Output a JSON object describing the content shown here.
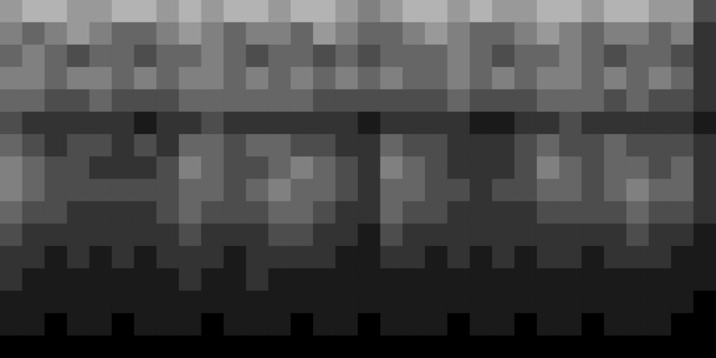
{
  "chart_data": {
    "type": "heatmap",
    "tick_labels": false,
    "grid": false,
    "color_range": [
      0,
      10
    ],
    "cells": [
      [
        6,
        7,
        7,
        6,
        6,
        7,
        7,
        6,
        7,
        6,
        7,
        7,
        6,
        7,
        7,
        6,
        5,
        6,
        7,
        7,
        6,
        7,
        6,
        6,
        7,
        7,
        6,
        7,
        7,
        6,
        6,
        3
      ],
      [
        5,
        4,
        5,
        6,
        5,
        4,
        4,
        5,
        6,
        5,
        4,
        5,
        5,
        4,
        6,
        5,
        4,
        4,
        5,
        6,
        5,
        4,
        4,
        5,
        6,
        5,
        4,
        5,
        5,
        4,
        5,
        2
      ],
      [
        4,
        5,
        4,
        3,
        4,
        4,
        3,
        4,
        4,
        5,
        4,
        3,
        4,
        4,
        3,
        4,
        3,
        4,
        4,
        4,
        5,
        4,
        3,
        4,
        4,
        5,
        4,
        3,
        4,
        4,
        3,
        2
      ],
      [
        5,
        5,
        4,
        5,
        5,
        4,
        5,
        4,
        5,
        5,
        4,
        5,
        4,
        5,
        4,
        5,
        4,
        5,
        4,
        4,
        5,
        4,
        5,
        4,
        5,
        5,
        4,
        5,
        4,
        5,
        4,
        2
      ],
      [
        4,
        4,
        3,
        3,
        4,
        3,
        3,
        3,
        4,
        4,
        4,
        4,
        4,
        4,
        3,
        3,
        3,
        3,
        3,
        3,
        4,
        3,
        3,
        3,
        4,
        4,
        4,
        3,
        4,
        3,
        3,
        2
      ],
      [
        3,
        2,
        2,
        2,
        2,
        2,
        1,
        2,
        2,
        3,
        2,
        2,
        2,
        2,
        2,
        2,
        1,
        2,
        2,
        2,
        2,
        1,
        1,
        2,
        2,
        3,
        2,
        2,
        2,
        2,
        2,
        1
      ],
      [
        4,
        3,
        2,
        3,
        3,
        2,
        3,
        2,
        4,
        4,
        3,
        4,
        4,
        3,
        3,
        2,
        2,
        4,
        3,
        3,
        2,
        2,
        2,
        3,
        4,
        3,
        3,
        4,
        3,
        3,
        3,
        2
      ],
      [
        5,
        4,
        3,
        3,
        2,
        2,
        2,
        3,
        5,
        4,
        3,
        3,
        4,
        5,
        4,
        3,
        2,
        5,
        4,
        3,
        2,
        2,
        2,
        3,
        5,
        4,
        3,
        4,
        4,
        3,
        4,
        2
      ],
      [
        5,
        4,
        3,
        3,
        3,
        3,
        3,
        3,
        4,
        4,
        3,
        4,
        5,
        4,
        4,
        3,
        2,
        4,
        4,
        3,
        3,
        2,
        3,
        3,
        4,
        4,
        3,
        4,
        5,
        4,
        4,
        2
      ],
      [
        4,
        3,
        3,
        2,
        2,
        2,
        2,
        3,
        4,
        3,
        3,
        3,
        4,
        4,
        3,
        2,
        2,
        4,
        3,
        3,
        2,
        2,
        2,
        2,
        3,
        3,
        3,
        3,
        4,
        3,
        3,
        2
      ],
      [
        3,
        2,
        2,
        2,
        2,
        2,
        2,
        2,
        3,
        2,
        2,
        2,
        3,
        3,
        2,
        2,
        1,
        3,
        2,
        2,
        2,
        2,
        2,
        2,
        2,
        2,
        2,
        2,
        3,
        2,
        2,
        1
      ],
      [
        2,
        2,
        1,
        2,
        1,
        2,
        1,
        2,
        2,
        2,
        1,
        2,
        2,
        2,
        2,
        1,
        1,
        2,
        2,
        1,
        2,
        1,
        2,
        1,
        2,
        2,
        1,
        2,
        2,
        2,
        1,
        1
      ],
      [
        2,
        1,
        1,
        1,
        1,
        1,
        1,
        1,
        2,
        1,
        1,
        2,
        1,
        1,
        1,
        1,
        1,
        1,
        1,
        1,
        1,
        1,
        1,
        1,
        1,
        1,
        1,
        1,
        1,
        1,
        1,
        1
      ],
      [
        1,
        1,
        1,
        1,
        1,
        1,
        1,
        1,
        1,
        1,
        1,
        1,
        1,
        1,
        1,
        1,
        1,
        1,
        1,
        1,
        1,
        1,
        1,
        1,
        1,
        1,
        1,
        1,
        1,
        1,
        1,
        0
      ],
      [
        1,
        1,
        0,
        1,
        1,
        0,
        1,
        1,
        1,
        0,
        1,
        1,
        1,
        0,
        1,
        1,
        0,
        1,
        1,
        1,
        0,
        1,
        1,
        0,
        1,
        1,
        0,
        1,
        1,
        1,
        0,
        0
      ],
      [
        0,
        0,
        0,
        0,
        0,
        0,
        0,
        0,
        0,
        0,
        0,
        0,
        0,
        0,
        0,
        0,
        0,
        0,
        0,
        0,
        0,
        0,
        0,
        0,
        0,
        0,
        0,
        0,
        0,
        0,
        0,
        0
      ]
    ]
  }
}
